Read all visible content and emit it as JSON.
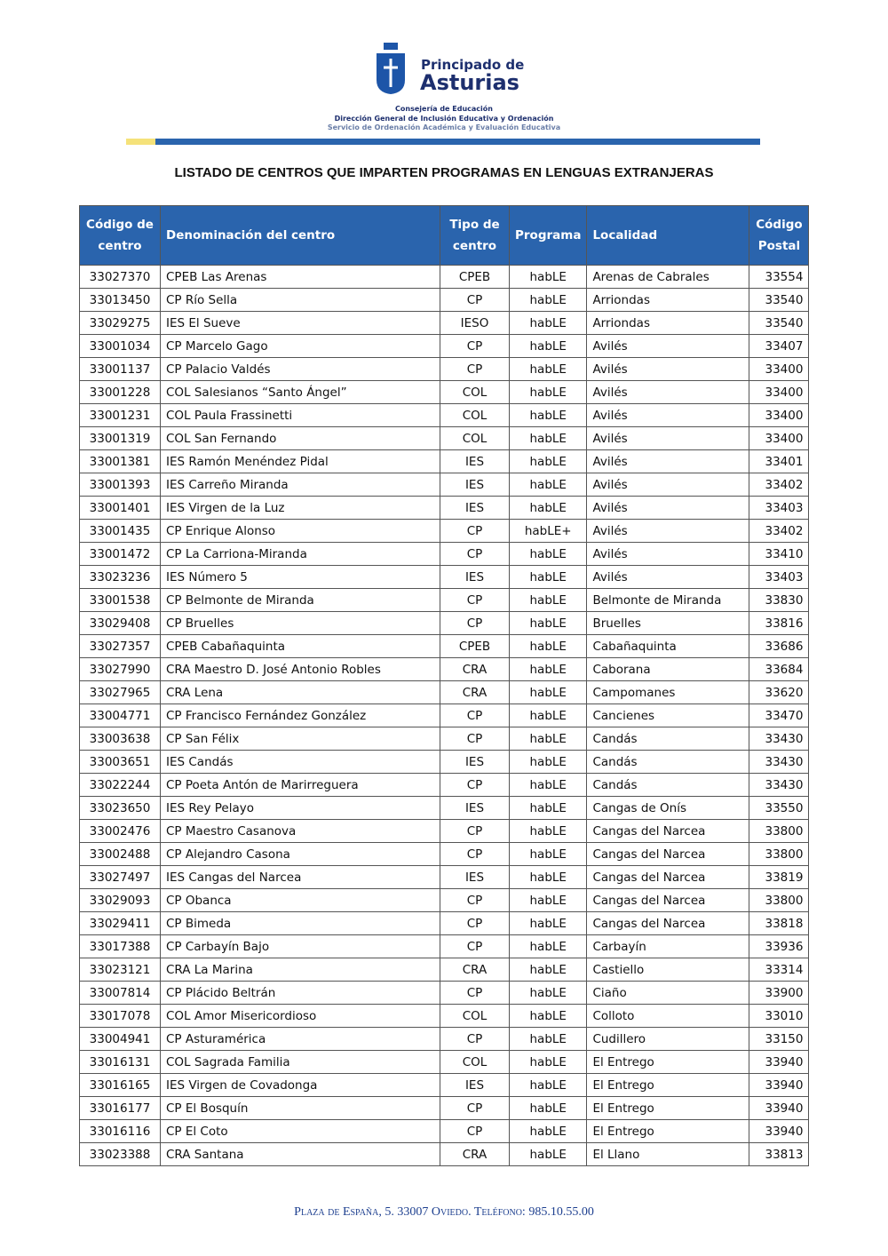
{
  "header": {
    "brand_top": "Principado de",
    "brand_main": "Asturias",
    "lines": [
      "Consejería de Educación",
      "Dirección General de Inclusión Educativa y Ordenación",
      "Servicio de Ordenación Académica y Evaluación Educativa"
    ]
  },
  "title": "LISTADO DE CENTROS QUE IMPARTEN PROGRAMAS EN LENGUAS EXTRANJERAS",
  "table": {
    "header": [
      "Código de centro",
      "Denominación del centro",
      "Tipo de centro",
      "Programa",
      "Localidad",
      "Código Postal"
    ],
    "rows": [
      [
        "33027370",
        "CPEB Las Arenas",
        "CPEB",
        "habLE",
        "Arenas de Cabrales",
        "33554"
      ],
      [
        "33013450",
        "CP Río Sella",
        "CP",
        "habLE",
        "Arriondas",
        "33540"
      ],
      [
        "33029275",
        "IES El Sueve",
        "IESO",
        "habLE",
        "Arriondas",
        "33540"
      ],
      [
        "33001034",
        "CP Marcelo Gago",
        "CP",
        "habLE",
        "Avilés",
        "33407"
      ],
      [
        "33001137",
        "CP Palacio Valdés",
        "CP",
        "habLE",
        "Avilés",
        "33400"
      ],
      [
        "33001228",
        "COL Salesianos “Santo Ángel”",
        "COL",
        "habLE",
        "Avilés",
        "33400"
      ],
      [
        "33001231",
        "COL Paula Frassinetti",
        "COL",
        "habLE",
        "Avilés",
        "33400"
      ],
      [
        "33001319",
        "COL San Fernando",
        "COL",
        "habLE",
        "Avilés",
        "33400"
      ],
      [
        "33001381",
        "IES Ramón Menéndez Pidal",
        "IES",
        "habLE",
        "Avilés",
        "33401"
      ],
      [
        "33001393",
        "IES Carreño Miranda",
        "IES",
        "habLE",
        "Avilés",
        "33402"
      ],
      [
        "33001401",
        "IES Virgen de la Luz",
        "IES",
        "habLE",
        "Avilés",
        "33403"
      ],
      [
        "33001435",
        "CP Enrique Alonso",
        "CP",
        "habLE+",
        "Avilés",
        "33402"
      ],
      [
        "33001472",
        "CP La Carriona-Miranda",
        "CP",
        "habLE",
        "Avilés",
        "33410"
      ],
      [
        "33023236",
        "IES Número 5",
        "IES",
        "habLE",
        "Avilés",
        "33403"
      ],
      [
        "33001538",
        "CP Belmonte de Miranda",
        "CP",
        "habLE",
        "Belmonte de Miranda",
        "33830"
      ],
      [
        "33029408",
        "CP Bruelles",
        "CP",
        "habLE",
        "Bruelles",
        "33816"
      ],
      [
        "33027357",
        "CPEB Cabañaquinta",
        "CPEB",
        "habLE",
        "Cabañaquinta",
        "33686"
      ],
      [
        "33027990",
        "CRA Maestro D. José Antonio Robles",
        "CRA",
        "habLE",
        "Caborana",
        "33684"
      ],
      [
        "33027965",
        "CRA Lena",
        "CRA",
        "habLE",
        "Campomanes",
        "33620"
      ],
      [
        "33004771",
        "CP Francisco Fernández González",
        "CP",
        "habLE",
        "Cancienes",
        "33470"
      ],
      [
        "33003638",
        "CP San Félix",
        "CP",
        "habLE",
        "Candás",
        "33430"
      ],
      [
        "33003651",
        "IES Candás",
        "IES",
        "habLE",
        "Candás",
        "33430"
      ],
      [
        "33022244",
        "CP Poeta Antón de Marirreguera",
        "CP",
        "habLE",
        "Candás",
        "33430"
      ],
      [
        "33023650",
        "IES Rey Pelayo",
        "IES",
        "habLE",
        "Cangas de Onís",
        "33550"
      ],
      [
        "33002476",
        "CP Maestro Casanova",
        "CP",
        "habLE",
        "Cangas del Narcea",
        "33800"
      ],
      [
        "33002488",
        "CP Alejandro Casona",
        "CP",
        "habLE",
        "Cangas del Narcea",
        "33800"
      ],
      [
        "33027497",
        "IES Cangas del Narcea",
        "IES",
        "habLE",
        "Cangas del Narcea",
        "33819"
      ],
      [
        "33029093",
        "CP Obanca",
        "CP",
        "habLE",
        "Cangas del Narcea",
        "33800"
      ],
      [
        "33029411",
        "CP Bimeda",
        "CP",
        "habLE",
        "Cangas del Narcea",
        "33818"
      ],
      [
        "33017388",
        "CP Carbayín Bajo",
        "CP",
        "habLE",
        "Carbayín",
        "33936"
      ],
      [
        "33023121",
        "CRA La Marina",
        "CRA",
        "habLE",
        "Castiello",
        "33314"
      ],
      [
        "33007814",
        "CP Plácido Beltrán",
        "CP",
        "habLE",
        "Ciaño",
        "33900"
      ],
      [
        "33017078",
        "COL Amor Misericordioso",
        "COL",
        "habLE",
        "Colloto",
        "33010"
      ],
      [
        "33004941",
        "CP Asturamérica",
        "CP",
        "habLE",
        "Cudillero",
        "33150"
      ],
      [
        "33016131",
        "COL Sagrada Familia",
        "COL",
        "habLE",
        "El Entrego",
        "33940"
      ],
      [
        "33016165",
        "IES Virgen de Covadonga",
        "IES",
        "habLE",
        "El Entrego",
        "33940"
      ],
      [
        "33016177",
        "CP El Bosquín",
        "CP",
        "habLE",
        "El Entrego",
        "33940"
      ],
      [
        "33016116",
        "CP El Coto",
        "CP",
        "habLE",
        "El Entrego",
        "33940"
      ],
      [
        "33023388",
        "CRA Santana",
        "CRA",
        "habLE",
        "El Llano",
        "33813"
      ]
    ]
  },
  "footer": "Plaza de España, 5. 33007 Oviedo. Teléfono: 985.10.55.00"
}
